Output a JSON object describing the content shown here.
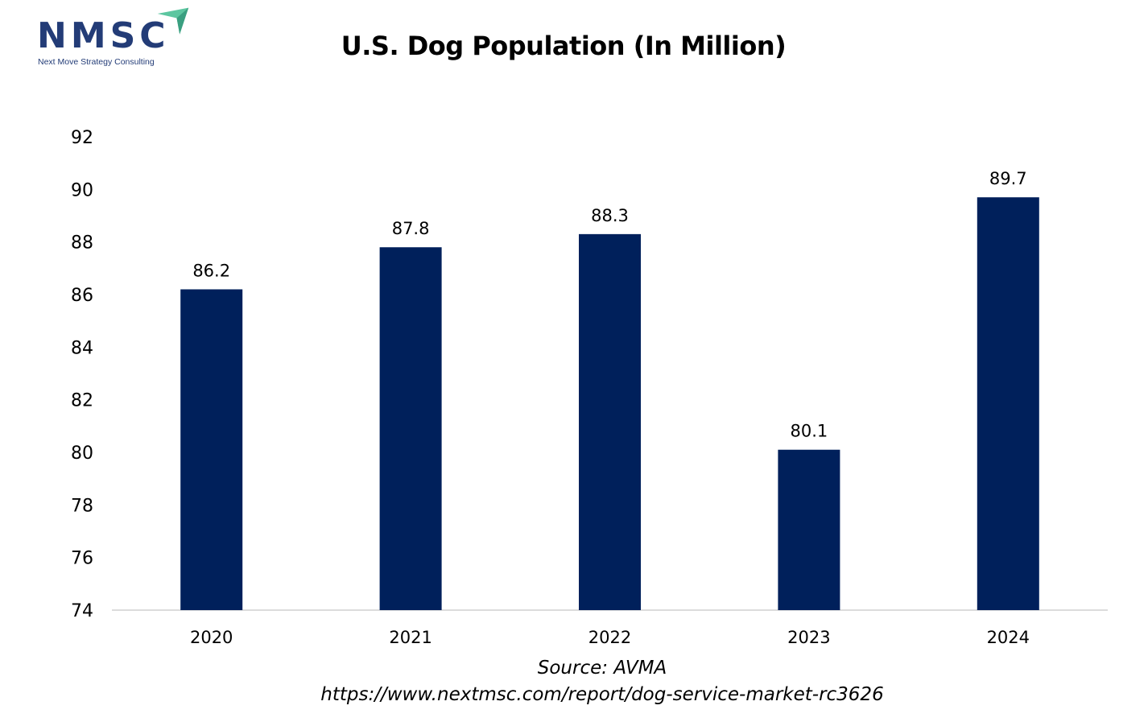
{
  "logo": {
    "text": "NMSC",
    "tagline": "Next Move Strategy Consulting"
  },
  "chart_data": {
    "type": "bar",
    "title": "U.S. Dog Population (In Million)",
    "categories": [
      "2020",
      "2021",
      "2022",
      "2023",
      "2024"
    ],
    "values": [
      86.2,
      87.8,
      88.3,
      80.1,
      89.7
    ],
    "data_labels": [
      "86.2",
      "87.8",
      "88.3",
      "80.1",
      "89.7"
    ],
    "ylim": [
      74,
      92
    ],
    "yticks": [
      74,
      76,
      78,
      80,
      82,
      84,
      86,
      88,
      90,
      92
    ],
    "xlabel": "",
    "ylabel": "",
    "grid": false,
    "bar_color": "#00205b"
  },
  "footer": {
    "source": "Source: AVMA",
    "url": "https://www.nextmsc.com/report/dog-service-market-rc3626"
  }
}
